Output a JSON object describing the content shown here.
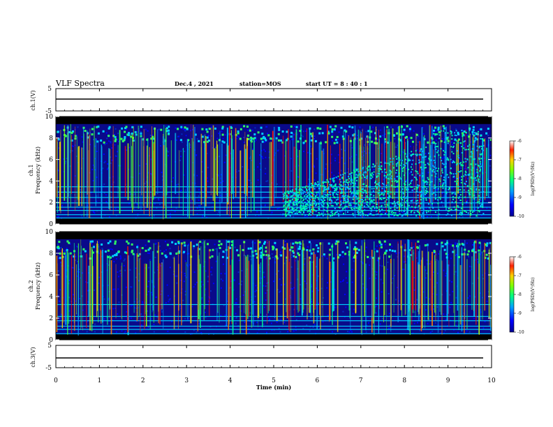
{
  "header": {
    "title": "VLF Spectra",
    "date": "Dec.4 , 2021",
    "station": "station=MOS",
    "start_ut": "start UT =  8 : 40 : 1"
  },
  "chart_data": [
    {
      "type": "line",
      "panel": "ch1-voltage",
      "ylabel": "ch.1(V)",
      "ylim": [
        -5,
        5
      ],
      "yticks": [
        "5",
        "-5"
      ],
      "xlim": [
        0,
        10
      ]
    },
    {
      "type": "heatmap",
      "panel": "ch1-spectrogram",
      "ylabel": "ch.1 Frequency (kHz)",
      "ylim": [
        0,
        10
      ],
      "yticks": [
        "0",
        "2",
        "4",
        "6",
        "8",
        "10"
      ],
      "xlim": [
        0,
        10
      ],
      "colorbar": {
        "label": "log(PSD)(V²/Hz)",
        "range": [
          -10,
          -6
        ],
        "ticks": [
          "-6",
          "-7",
          "-8",
          "-9",
          "-10"
        ]
      }
    },
    {
      "type": "heatmap",
      "panel": "ch2-spectrogram",
      "ylabel": "ch.2 Frequency (kHz)",
      "ylim": [
        0,
        10
      ],
      "yticks": [
        "0",
        "2",
        "4",
        "6",
        "8",
        "10"
      ],
      "xlim": [
        0,
        10
      ],
      "colorbar": {
        "label": "log(PSD)(V²/Hz)",
        "range": [
          -10,
          -6
        ],
        "ticks": [
          "-6",
          "-7",
          "-8",
          "-9",
          "-10"
        ]
      }
    },
    {
      "type": "line",
      "panel": "ch3-voltage",
      "ylabel": "ch.3(V)",
      "ylim": [
        -5,
        5
      ],
      "yticks": [
        "5",
        "-5"
      ],
      "xlim": [
        0,
        10
      ],
      "xlabel": "Time (min)",
      "xticks": [
        "0",
        "1",
        "2",
        "3",
        "4",
        "5",
        "6",
        "7",
        "8",
        "9",
        "10"
      ]
    }
  ],
  "labels": {
    "ch1v": "ch.1(V)",
    "ch1_line1": "ch.1",
    "ch1_line2": "Frequency (kHz)",
    "ch2_line1": "ch.2",
    "ch2_line2": "Frequency (kHz)",
    "ch3v": "ch.3(V)",
    "cb_label": "log(PSD)(V²/Hz)",
    "xlabel": "Time (min)"
  }
}
